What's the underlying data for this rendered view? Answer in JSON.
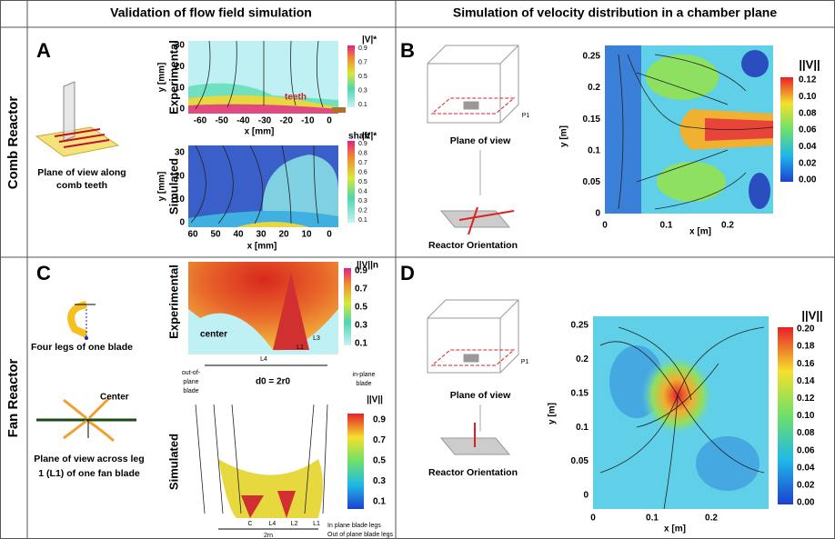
{
  "header": {
    "left": "Validation of flow field simulation",
    "right": "Simulation of velocity distribution in a chamber plane"
  },
  "rows": [
    {
      "label": "Comb Reactor"
    },
    {
      "label": "Fan Reactor"
    }
  ],
  "panels": {
    "A": {
      "letter": "A",
      "caption": [
        "Plane of view along",
        "comb teeth"
      ],
      "experimental": {
        "label": "Experimental",
        "x_label": "x [mm]",
        "y_label": "y [mm]",
        "x_ticks": [
          "-60",
          "-50",
          "-40",
          "-30",
          "-20",
          "-10",
          "0"
        ],
        "y_ticks": [
          "0",
          "10",
          "20",
          "30"
        ],
        "colorbar_title": "|V|*",
        "colorbar_ticks": [
          "0.9",
          "0.7",
          "0.5",
          "0.3",
          "0.1"
        ],
        "annotations": [
          "teeth",
          "shaft"
        ]
      },
      "simulated": {
        "label": "Simulated",
        "x_label": "x [mm]",
        "y_label": "y [mm]",
        "x_ticks": [
          "60",
          "50",
          "40",
          "30",
          "20",
          "10",
          "0"
        ],
        "y_ticks": [
          "0",
          "10",
          "20",
          "30"
        ],
        "colorbar_title": "|V|*",
        "colorbar_ticks": [
          "0.9",
          "0.8",
          "0.7",
          "0.6",
          "0.5",
          "0.4",
          "0.3",
          "0.2",
          "0.1"
        ]
      }
    },
    "B": {
      "letter": "B",
      "plane_label": "P1",
      "plane_caption": "Plane of view",
      "orientation_caption": "Reactor Orientation",
      "plot": {
        "x_label": "x [m]",
        "y_label": "y [m]",
        "x_ticks": [
          "0",
          "0.1",
          "0.2"
        ],
        "y_ticks": [
          "0",
          "0.05",
          "0.1",
          "0.15",
          "0.2",
          "0.25"
        ],
        "colorbar_title": "||V||",
        "colorbar_ticks": [
          "0.12",
          "0.10",
          "0.08",
          "0.06",
          "0.04",
          "0.02",
          "0.00"
        ]
      }
    },
    "C": {
      "letter": "C",
      "blade_caption": "Four legs of one blade",
      "center_label": "Center",
      "caption": [
        "Plane of view across leg",
        "1 (L1) of one fan blade"
      ],
      "experimental": {
        "label": "Experimental",
        "colorbar_title": "||V||n",
        "colorbar_ticks": [
          "0.9",
          "0.7",
          "0.5",
          "0.3",
          "0.1"
        ],
        "annotations": {
          "center": "center",
          "out_of_plane": [
            "out-of-",
            "plane",
            "blade"
          ],
          "in_plane": [
            "in-plane",
            "blade"
          ],
          "diameter": "d0 = 2r0",
          "legs": [
            "L4",
            "L1",
            "L3"
          ]
        }
      },
      "simulated": {
        "label": "Simulated",
        "colorbar_title": "||V||",
        "colorbar_ticks": [
          "0.9",
          "0.7",
          "0.5",
          "0.3",
          "0.1"
        ],
        "annotations": {
          "legs": [
            "C",
            "L4",
            "L2",
            "L1"
          ],
          "diameter": "2rn",
          "legend": [
            "In plane blade legs",
            "Out of plane blade legs"
          ]
        }
      }
    },
    "D": {
      "letter": "D",
      "plane_label": "P1",
      "plane_caption": "Plane of view",
      "orientation_caption": "Reactor Orientation",
      "plot": {
        "x_label": "x [m]",
        "y_label": "y [m]",
        "x_ticks": [
          "0",
          "0.1",
          "0.2"
        ],
        "y_ticks": [
          "0",
          "0.05",
          "0.1",
          "0.15",
          "0.2",
          "0.25"
        ],
        "colorbar_title": "||V||",
        "colorbar_ticks": [
          "0.20",
          "0.18",
          "0.16",
          "0.14",
          "0.12",
          "0.10",
          "0.08",
          "0.06",
          "0.04",
          "0.02",
          "0.00"
        ]
      }
    }
  }
}
